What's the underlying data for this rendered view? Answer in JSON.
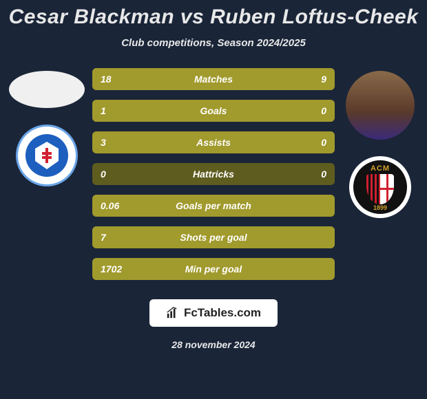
{
  "background_color": "#1a2538",
  "title": "Cesar Blackman vs Ruben Loftus-Cheek",
  "title_fontsize": 30,
  "title_color": "#e8e8e8",
  "subtitle": "Club competitions, Season 2024/2025",
  "subtitle_fontsize": 15,
  "player1": {
    "name": "Cesar Blackman",
    "avatar_bg": "#f0f0f0"
  },
  "player2": {
    "name": "Ruben Loftus-Cheek",
    "avatar_bg": "#5a4a3a"
  },
  "club1": {
    "name": "Slovan Bratislava",
    "primary": "#1d5fbf",
    "ring": "#6aa5e8"
  },
  "club2": {
    "name": "AC Milan",
    "primary": "#d02030",
    "text": "ACM",
    "year": "1899"
  },
  "bars": {
    "base_color": "#5e5c1f",
    "fill_color": "#a19a2d",
    "height": 32,
    "gap": 14,
    "border_radius": 6,
    "font_size": 14,
    "rows": [
      {
        "label": "Matches",
        "left": "18",
        "right": "9",
        "left_pct": 66.7,
        "right_pct": 33.3
      },
      {
        "label": "Goals",
        "left": "1",
        "right": "0",
        "left_pct": 100,
        "right_pct": 0
      },
      {
        "label": "Assists",
        "left": "3",
        "right": "0",
        "left_pct": 100,
        "right_pct": 0
      },
      {
        "label": "Hattricks",
        "left": "0",
        "right": "0",
        "left_pct": 0,
        "right_pct": 0
      },
      {
        "label": "Goals per match",
        "left": "0.06",
        "right": "",
        "left_pct": 100,
        "right_pct": 0
      },
      {
        "label": "Shots per goal",
        "left": "7",
        "right": "",
        "left_pct": 100,
        "right_pct": 0
      },
      {
        "label": "Min per goal",
        "left": "1702",
        "right": "",
        "left_pct": 100,
        "right_pct": 0
      }
    ]
  },
  "watermark": {
    "text": "FcTables.com",
    "icon": "bar-chart-icon"
  },
  "date": "28 november 2024"
}
